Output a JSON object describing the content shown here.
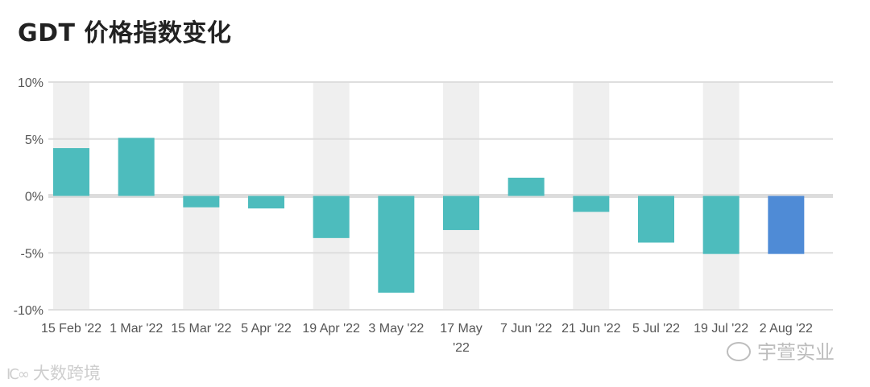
{
  "title": "GDT 价格指数变化",
  "chart_data": {
    "type": "bar",
    "title": "GDT 价格指数变化",
    "categories": [
      "15 Feb '22",
      "1 Mar '22",
      "15 Mar '22",
      "5 Apr '22",
      "19 Apr '22",
      "3 May '22",
      "17 May '22",
      "7 Jun '22",
      "21 Jun '22",
      "5 Jul '22",
      "19 Jul '22",
      "2 Aug '22"
    ],
    "category_lines": [
      [
        "15 Feb '22"
      ],
      [
        "1 Mar '22"
      ],
      [
        "15 Mar '22"
      ],
      [
        "5 Apr '22"
      ],
      [
        "19 Apr '22"
      ],
      [
        "3 May '22"
      ],
      [
        "17 May",
        "'22"
      ],
      [
        "7 Jun '22"
      ],
      [
        "21 Jun '22"
      ],
      [
        "5 Jul '22"
      ],
      [
        "19 Jul '22"
      ],
      [
        "2 Aug '22"
      ]
    ],
    "values": [
      4.2,
      5.1,
      -1.0,
      -1.1,
      -3.7,
      -8.5,
      -3.0,
      1.6,
      -1.4,
      -4.1,
      -5.1,
      -5.1
    ],
    "unit": "%",
    "ylim": [
      -10,
      10
    ],
    "yticks": [
      -10,
      -5,
      0,
      5,
      10
    ],
    "ytick_labels": [
      "-10%",
      "-5%",
      "0%",
      "5%",
      "10%"
    ],
    "grid": true,
    "colors": {
      "bar": "#4dbcbd",
      "highlight": "#4f8bd6",
      "band": "#efefef",
      "gridline": "#dedede",
      "zeroline": "#dcdcdc"
    },
    "highlight_index": 11
  },
  "watermarks": {
    "left_logo": "IC∞",
    "left_text": "大数跨境",
    "right_text": "宇萱实业"
  }
}
